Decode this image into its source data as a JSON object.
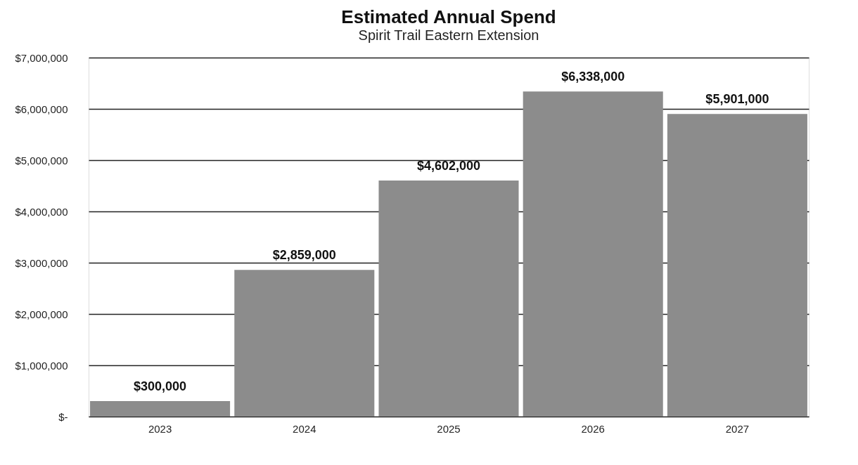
{
  "chart_data": {
    "type": "bar",
    "title": "Estimated Annual Spend",
    "subtitle": "Spirit Trail Eastern Extension",
    "categories": [
      "2023",
      "2024",
      "2025",
      "2026",
      "2027"
    ],
    "values": [
      300000,
      2859000,
      4602000,
      6338000,
      5901000
    ],
    "value_labels": [
      "$300,000",
      "$2,859,000",
      "$4,602,000",
      "$6,338,000",
      "$5,901,000"
    ],
    "color": "#8c8c8c",
    "ylim": [
      0,
      7000000
    ],
    "yticks": [
      {
        "value": 0,
        "label": "$-"
      },
      {
        "value": 1000000,
        "label": "$1,000,000"
      },
      {
        "value": 2000000,
        "label": "$2,000,000"
      },
      {
        "value": 3000000,
        "label": "$3,000,000"
      },
      {
        "value": 4000000,
        "label": "$4,000,000"
      },
      {
        "value": 5000000,
        "label": "$5,000,000"
      },
      {
        "value": 6000000,
        "label": "$6,000,000"
      },
      {
        "value": 7000000,
        "label": "$7,000,000"
      }
    ],
    "grid": "y"
  }
}
